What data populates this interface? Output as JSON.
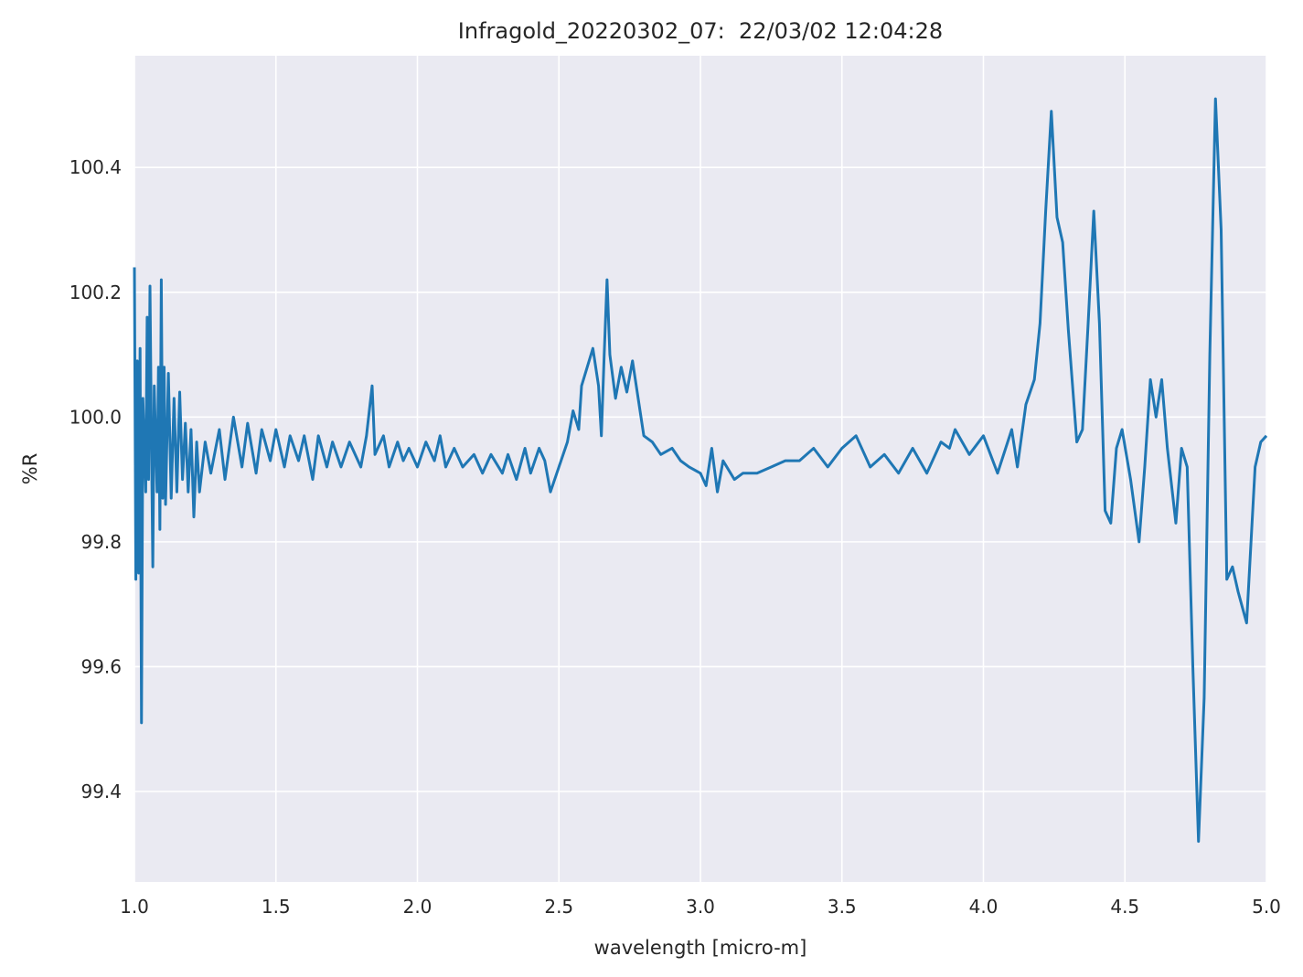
{
  "chart_data": {
    "type": "line",
    "title": "Infragold_20220302_07:  22/03/02 12:04:28",
    "xlabel": "wavelength [micro-m]",
    "ylabel": "%R",
    "color": "#1f77b4",
    "background": "#eaeaf2",
    "grid": true,
    "xlim": [
      1.0,
      5.0
    ],
    "ylim": [
      99.255,
      100.579
    ],
    "xticks": [
      {
        "value": 1.0,
        "label": "1.0"
      },
      1.5,
      {
        "value": 2.0,
        "label": "2.0"
      },
      2.5,
      {
        "value": 3.0,
        "label": "3.0"
      },
      3.5,
      {
        "value": 4.0,
        "label": "4.0"
      },
      4.5,
      {
        "value": 5.0,
        "label": "5.0"
      }
    ],
    "yticks": [
      99.4,
      99.6,
      99.8,
      {
        "value": 100.0,
        "label": "100.0"
      },
      100.2,
      100.4
    ],
    "x": [
      1.0,
      1.005,
      1.01,
      1.015,
      1.02,
      1.025,
      1.03,
      1.04,
      1.045,
      1.05,
      1.055,
      1.06,
      1.065,
      1.07,
      1.08,
      1.085,
      1.09,
      1.095,
      1.1,
      1.105,
      1.11,
      1.12,
      1.13,
      1.14,
      1.15,
      1.16,
      1.17,
      1.18,
      1.19,
      1.2,
      1.21,
      1.22,
      1.23,
      1.25,
      1.27,
      1.3,
      1.32,
      1.35,
      1.38,
      1.4,
      1.43,
      1.45,
      1.48,
      1.5,
      1.53,
      1.55,
      1.58,
      1.6,
      1.63,
      1.65,
      1.68,
      1.7,
      1.73,
      1.76,
      1.8,
      1.82,
      1.84,
      1.85,
      1.88,
      1.9,
      1.93,
      1.95,
      1.97,
      2.0,
      2.03,
      2.06,
      2.08,
      2.1,
      2.13,
      2.16,
      2.2,
      2.23,
      2.26,
      2.3,
      2.32,
      2.35,
      2.38,
      2.4,
      2.43,
      2.45,
      2.47,
      2.5,
      2.53,
      2.55,
      2.57,
      2.58,
      2.6,
      2.62,
      2.64,
      2.65,
      2.66,
      2.67,
      2.68,
      2.7,
      2.72,
      2.74,
      2.76,
      2.78,
      2.8,
      2.83,
      2.86,
      2.9,
      2.93,
      2.96,
      3.0,
      3.02,
      3.04,
      3.06,
      3.08,
      3.12,
      3.15,
      3.2,
      3.25,
      3.3,
      3.35,
      3.4,
      3.45,
      3.5,
      3.55,
      3.6,
      3.65,
      3.7,
      3.75,
      3.8,
      3.85,
      3.88,
      3.9,
      3.95,
      4.0,
      4.05,
      4.1,
      4.12,
      4.15,
      4.18,
      4.2,
      4.22,
      4.24,
      4.26,
      4.28,
      4.3,
      4.33,
      4.35,
      4.37,
      4.39,
      4.41,
      4.43,
      4.45,
      4.47,
      4.49,
      4.52,
      4.55,
      4.57,
      4.59,
      4.61,
      4.63,
      4.65,
      4.68,
      4.7,
      4.72,
      4.74,
      4.76,
      4.78,
      4.8,
      4.82,
      4.84,
      4.86,
      4.88,
      4.9,
      4.93,
      4.96,
      4.98,
      5.0
    ],
    "values": [
      100.24,
      99.74,
      100.09,
      99.75,
      100.11,
      99.51,
      100.03,
      99.88,
      100.16,
      99.9,
      100.21,
      99.97,
      99.76,
      100.05,
      99.88,
      100.08,
      99.82,
      100.22,
      99.87,
      100.08,
      99.86,
      100.07,
      99.87,
      100.03,
      99.88,
      100.04,
      99.9,
      99.99,
      99.88,
      99.98,
      99.84,
      99.96,
      99.88,
      99.96,
      99.91,
      99.98,
      99.9,
      100.0,
      99.92,
      99.99,
      99.91,
      99.98,
      99.93,
      99.98,
      99.92,
      99.97,
      99.93,
      99.97,
      99.9,
      99.97,
      99.92,
      99.96,
      99.92,
      99.96,
      99.92,
      99.97,
      100.05,
      99.94,
      99.97,
      99.92,
      99.96,
      99.93,
      99.95,
      99.92,
      99.96,
      99.93,
      99.97,
      99.92,
      99.95,
      99.92,
      99.94,
      99.91,
      99.94,
      99.91,
      99.94,
      99.9,
      99.95,
      99.91,
      99.95,
      99.93,
      99.88,
      99.92,
      99.96,
      100.01,
      99.98,
      100.05,
      100.08,
      100.11,
      100.05,
      99.97,
      100.1,
      100.22,
      100.1,
      100.03,
      100.08,
      100.04,
      100.09,
      100.03,
      99.97,
      99.96,
      99.94,
      99.95,
      99.93,
      99.92,
      99.91,
      99.89,
      99.95,
      99.88,
      99.93,
      99.9,
      99.91,
      99.91,
      99.92,
      99.93,
      99.93,
      99.95,
      99.92,
      99.95,
      99.97,
      99.92,
      99.94,
      99.91,
      99.95,
      99.91,
      99.96,
      99.95,
      99.98,
      99.94,
      99.97,
      99.91,
      99.98,
      99.92,
      100.02,
      100.06,
      100.15,
      100.33,
      100.49,
      100.32,
      100.28,
      100.14,
      99.96,
      99.98,
      100.15,
      100.33,
      100.15,
      99.85,
      99.83,
      99.95,
      99.98,
      99.9,
      99.8,
      99.92,
      100.06,
      100.0,
      100.06,
      99.95,
      99.83,
      99.95,
      99.92,
      99.6,
      99.32,
      99.55,
      100.1,
      100.51,
      100.3,
      99.74,
      99.76,
      99.72,
      99.67,
      99.92,
      99.96,
      99.97
    ]
  }
}
